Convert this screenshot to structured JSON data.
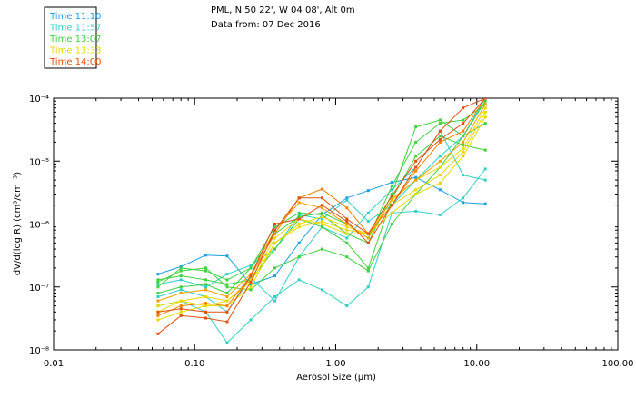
{
  "header": {
    "location": "PML, N 50 22', W 04 08', Alt 0m",
    "date_line": "Data from: 07 Dec 2016"
  },
  "chart_data": {
    "type": "line",
    "title": "",
    "xlabel": "Aerosol Size (µm)",
    "ylabel": "dV/d(log R) (cm³/cm⁻³)",
    "xscale": "log",
    "yscale": "log",
    "xlim": [
      0.01,
      100
    ],
    "ylim": [
      1e-08,
      0.0001
    ],
    "x_ticks": [
      "0.01",
      "0.10",
      "1.00",
      "10.00",
      "100.00"
    ],
    "y_ticks": [
      "10⁻⁸",
      "10⁻⁷",
      "10⁻⁶",
      "10⁻⁵",
      "10⁻⁴"
    ],
    "legend_position": "top-left, outside plot",
    "legend": [
      {
        "name": "Time 11:10",
        "color": "#1fa0e0"
      },
      {
        "name": "Time 11:57",
        "color": "#30d0c8"
      },
      {
        "name": "Time 13:07",
        "color": "#40d040"
      },
      {
        "name": "Time 13:33",
        "color": "#e8d800"
      },
      {
        "name": "Time 14:00",
        "color": "#e05010"
      }
    ],
    "x": [
      0.055,
      0.08,
      0.12,
      0.17,
      0.25,
      0.37,
      0.55,
      0.8,
      1.2,
      1.7,
      2.5,
      3.7,
      5.5,
      8.0,
      11.5
    ],
    "series": [
      {
        "color": "#1fa0e0",
        "values": [
          1.6e-07,
          2.1e-07,
          3.2e-07,
          3.1e-07,
          1.1e-07,
          1.5e-07,
          5e-07,
          1.4e-06,
          2.6e-06,
          3.4e-06,
          4.6e-06,
          5.5e-06,
          3.5e-06,
          2.2e-06,
          2.1e-06
        ]
      },
      {
        "color": "#30d0c8",
        "values": [
          5e-08,
          6e-08,
          4e-08,
          1.3e-08,
          3e-08,
          7e-08,
          1.3e-07,
          9e-08,
          5e-08,
          1e-07,
          1.5e-06,
          1.6e-06,
          1.4e-06,
          2.6e-06,
          7.5e-06
        ]
      },
      {
        "color": "#30d0c8",
        "values": [
          7e-08,
          9e-08,
          7e-08,
          4e-08,
          1.4e-07,
          6e-08,
          3e-07,
          9e-07,
          6e-07,
          1.5e-06,
          3.5e-06,
          8e-06,
          3e-05,
          6e-06,
          5e-06
        ]
      },
      {
        "color": "#30d0c8",
        "values": [
          1.1e-07,
          1.3e-07,
          1e-07,
          1.6e-07,
          2.2e-07,
          4e-07,
          1.4e-06,
          1.2e-06,
          2.4e-06,
          1.1e-06,
          2e-06,
          5e-06,
          1.2e-05,
          2.5e-05,
          0.0001
        ]
      },
      {
        "color": "#40d040",
        "values": [
          1.3e-07,
          1.5e-07,
          1.3e-07,
          1.1e-07,
          1.3e-07,
          4e-07,
          1.2e-06,
          9e-07,
          5e-07,
          2e-07,
          2.5e-06,
          1.2e-05,
          2.5e-05,
          1.8e-05,
          1.5e-05
        ]
      },
      {
        "color": "#40d040",
        "values": [
          1.2e-07,
          1.8e-07,
          2e-07,
          1e-07,
          9e-08,
          2e-07,
          3e-07,
          4e-07,
          3e-07,
          1.8e-07,
          1e-06,
          3e-06,
          8e-06,
          2.5e-05,
          9e-05
        ]
      },
      {
        "color": "#40d040",
        "values": [
          8e-08,
          1e-07,
          1.1e-07,
          8e-08,
          2e-07,
          9e-07,
          1.5e-06,
          1.4e-06,
          7e-07,
          5e-07,
          3e-06,
          3.5e-05,
          4.5e-05,
          2.5e-05,
          4e-05
        ]
      },
      {
        "color": "#40d040",
        "values": [
          1e-07,
          2e-07,
          1.8e-07,
          1.3e-07,
          2e-07,
          7e-07,
          1.3e-06,
          1.5e-06,
          1e-06,
          6e-07,
          4e-06,
          2e-05,
          4e-05,
          4.5e-05,
          8e-05
        ]
      },
      {
        "color": "#e8d800",
        "values": [
          4e-08,
          6e-08,
          7e-08,
          6e-08,
          1.2e-07,
          5e-07,
          1e-06,
          1.3e-06,
          9e-07,
          7e-07,
          1.5e-06,
          3e-06,
          4.5e-06,
          1.2e-05,
          5e-05
        ]
      },
      {
        "color": "#e8d800",
        "values": [
          3e-08,
          4e-08,
          5e-08,
          5e-08,
          1e-07,
          5e-07,
          9e-07,
          1.1e-06,
          8e-07,
          7e-07,
          2e-06,
          3.5e-06,
          6e-06,
          1.4e-05,
          6e-05
        ]
      },
      {
        "color": "#e8d800",
        "values": [
          5e-08,
          6e-08,
          5e-08,
          6e-08,
          1.3e-07,
          6e-07,
          1.2e-06,
          1e-06,
          7e-07,
          7e-07,
          2.4e-06,
          5e-06,
          8e-06,
          1.6e-05,
          7e-05
        ]
      },
      {
        "color": "#f0a000",
        "values": [
          6e-08,
          8e-08,
          9e-08,
          7e-08,
          1.6e-07,
          8e-07,
          2.2e-06,
          1.8e-06,
          1e-06,
          6e-07,
          2.5e-06,
          5e-06,
          1e-05,
          2e-05,
          8e-05
        ]
      },
      {
        "color": "#f08000",
        "values": [
          3.5e-08,
          5e-08,
          5.5e-08,
          5e-08,
          1.5e-07,
          7e-07,
          2.6e-06,
          3.6e-06,
          1.8e-06,
          7e-07,
          2e-06,
          7e-06,
          2e-05,
          3e-05,
          0.0001
        ]
      },
      {
        "color": "#e05010",
        "values": [
          1.8e-08,
          3.5e-08,
          3.2e-08,
          2.8e-08,
          1.2e-07,
          8e-07,
          2.6e-06,
          2.6e-06,
          1.2e-06,
          7e-07,
          2.8e-06,
          1e-05,
          2.2e-05,
          4e-05,
          0.0001
        ]
      },
      {
        "color": "#e05010",
        "values": [
          4e-08,
          4.5e-08,
          4e-08,
          4e-08,
          1.5e-07,
          1e-06,
          1.2e-06,
          2e-06,
          1.1e-06,
          5e-07,
          2e-06,
          8e-06,
          3e-05,
          7e-05,
          0.0001
        ]
      }
    ]
  }
}
